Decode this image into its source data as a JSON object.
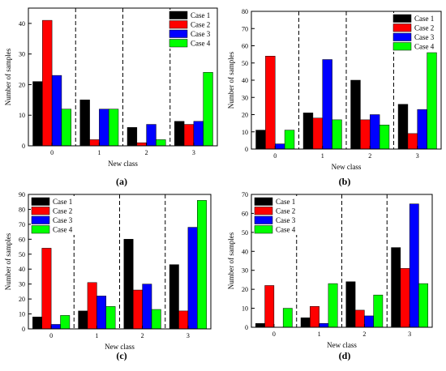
{
  "chart_data": [
    {
      "type": "bar",
      "panel_label": "(a)",
      "xlabel": "New class",
      "ylabel": "Number of samples",
      "categories": [
        "0",
        "1",
        "2",
        "3"
      ],
      "ylim": [
        0,
        45
      ],
      "yticks": [
        0,
        10,
        20,
        30,
        40
      ],
      "legend_position": "top-right",
      "series": [
        {
          "name": "Case 1",
          "color": "#000000",
          "values": [
            21,
            15,
            6,
            8
          ]
        },
        {
          "name": "Case 2",
          "color": "#ff0000",
          "values": [
            41,
            2,
            1,
            7
          ]
        },
        {
          "name": "Case 3",
          "color": "#0000ff",
          "values": [
            23,
            12,
            7,
            8
          ]
        },
        {
          "name": "Case 4",
          "color": "#00ff00",
          "values": [
            12,
            12,
            2,
            24
          ]
        }
      ]
    },
    {
      "type": "bar",
      "panel_label": "(b)",
      "xlabel": "New class",
      "ylabel": "Number of samples",
      "categories": [
        "0",
        "1",
        "2",
        "3"
      ],
      "ylim": [
        0,
        80
      ],
      "yticks": [
        0,
        10,
        20,
        30,
        40,
        50,
        60,
        70,
        80
      ],
      "legend_position": "top-right",
      "series": [
        {
          "name": "Case 1",
          "color": "#000000",
          "values": [
            11,
            21,
            40,
            26
          ]
        },
        {
          "name": "Case 2",
          "color": "#ff0000",
          "values": [
            54,
            18,
            17,
            9
          ]
        },
        {
          "name": "Case 3",
          "color": "#0000ff",
          "values": [
            3,
            52,
            20,
            23
          ]
        },
        {
          "name": "Case 4",
          "color": "#00ff00",
          "values": [
            11,
            17,
            14,
            56
          ]
        }
      ]
    },
    {
      "type": "bar",
      "panel_label": "(c)",
      "xlabel": "New class",
      "ylabel": "Number of samples",
      "categories": [
        "0",
        "1",
        "2",
        "3"
      ],
      "ylim": [
        0,
        90
      ],
      "yticks": [
        0,
        10,
        20,
        30,
        40,
        50,
        60,
        70,
        80,
        90
      ],
      "legend_position": "top-left",
      "series": [
        {
          "name": "Case 1",
          "color": "#000000",
          "values": [
            8,
            12,
            60,
            43
          ]
        },
        {
          "name": "Case 2",
          "color": "#ff0000",
          "values": [
            54,
            31,
            26,
            12
          ]
        },
        {
          "name": "Case 3",
          "color": "#0000ff",
          "values": [
            3,
            22,
            30,
            68
          ]
        },
        {
          "name": "Case 4",
          "color": "#00ff00",
          "values": [
            9,
            15,
            13,
            86
          ]
        }
      ]
    },
    {
      "type": "bar",
      "panel_label": "(d)",
      "xlabel": "New class",
      "ylabel": "Number of samples",
      "categories": [
        "0",
        "1",
        "2",
        "3"
      ],
      "ylim": [
        0,
        70
      ],
      "yticks": [
        0,
        10,
        20,
        30,
        40,
        50,
        60,
        70
      ],
      "legend_position": "top-left",
      "series": [
        {
          "name": "Case 1",
          "color": "#000000",
          "values": [
            2,
            5,
            24,
            42
          ]
        },
        {
          "name": "Case 2",
          "color": "#ff0000",
          "values": [
            22,
            11,
            9,
            31
          ]
        },
        {
          "name": "Case 3",
          "color": "#0000ff",
          "values": [
            0,
            2,
            6,
            65
          ]
        },
        {
          "name": "Case 4",
          "color": "#00ff00",
          "values": [
            10,
            23,
            17,
            23
          ]
        }
      ]
    }
  ]
}
